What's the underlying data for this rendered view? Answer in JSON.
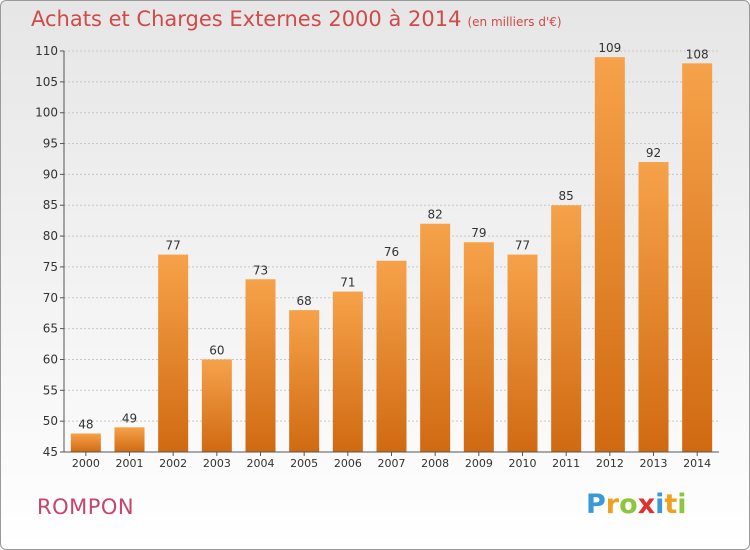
{
  "header": {
    "title": "Achats et Charges Externes 2000 à 2014",
    "subtitle": "(en milliers d'€)"
  },
  "footer": {
    "location": "ROMPON",
    "brand": "Proxiti",
    "brand_letters": [
      {
        "char": "P",
        "color": "#3a9ad9"
      },
      {
        "char": "r",
        "color": "#f0a020"
      },
      {
        "char": "o",
        "color": "#8cc63f"
      },
      {
        "char": "x",
        "color": "#e03030"
      },
      {
        "char": "i",
        "color": "#3a9ad9"
      },
      {
        "char": "t",
        "color": "#f0a020"
      },
      {
        "char": "i",
        "color": "#8cc63f"
      }
    ]
  },
  "colors": {
    "bar_light": "#f6a24a",
    "bar_dark": "#d06a12",
    "grid": "#c8c8c8",
    "title": "#d14a4a"
  },
  "chart_data": {
    "type": "bar",
    "title": "Achats et Charges Externes 2000 à 2014",
    "subtitle": "(en milliers d'€)",
    "categories": [
      "2000",
      "2001",
      "2002",
      "2003",
      "2004",
      "2005",
      "2006",
      "2007",
      "2008",
      "2009",
      "2010",
      "2011",
      "2012",
      "2013",
      "2014"
    ],
    "values": [
      48,
      49,
      77,
      60,
      73,
      68,
      71,
      76,
      82,
      79,
      77,
      85,
      109,
      92,
      108
    ],
    "ylim": [
      45,
      110
    ],
    "yticks": [
      45,
      50,
      55,
      60,
      65,
      70,
      75,
      80,
      85,
      90,
      95,
      100,
      105,
      110
    ],
    "grid": true,
    "data_labels": true
  }
}
